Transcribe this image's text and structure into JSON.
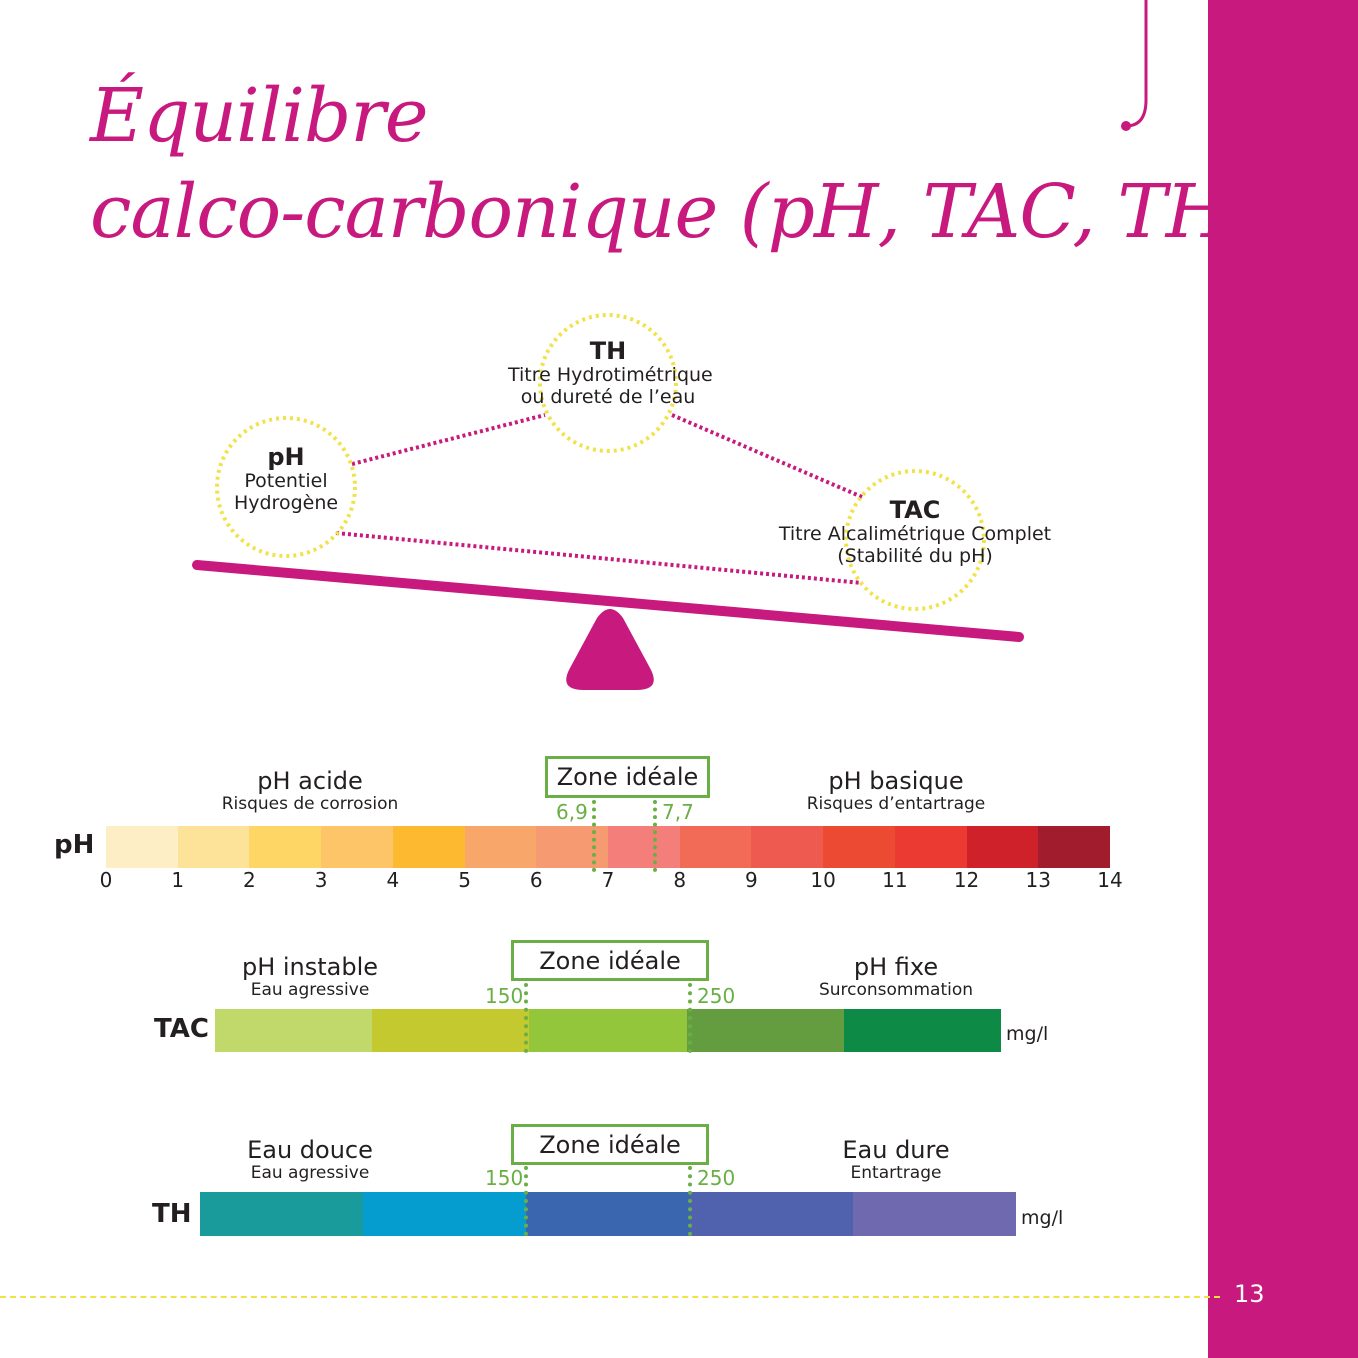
{
  "page": {
    "number": "13"
  },
  "title": {
    "line1": "Équilibre",
    "line2": "calco-carbonique (pH, TAC, TH)"
  },
  "balance": {
    "nodes": {
      "th": {
        "title": "TH",
        "line1": "Titre Hydrotimétrique",
        "line2": "ou dureté de l’eau"
      },
      "ph": {
        "title": "pH",
        "line1": "Potentiel",
        "line2": "Hydrogène"
      },
      "tac": {
        "title": "TAC",
        "line1": "Titre Alcalimétrique Complet",
        "line2": "(Stabilité du pH)"
      }
    },
    "colors": {
      "beam": "#c8197e",
      "circle": "#f2e24a",
      "link": "#c8197e"
    }
  },
  "scales": {
    "ph": {
      "label": "pH",
      "zone": "Zone idéale",
      "left": {
        "main": "pH acide",
        "sub": "Risques de corrosion"
      },
      "right": {
        "main": "pH basique",
        "sub": "Risques d’entartrage"
      },
      "marker_low": "6,9",
      "marker_high": "7,7",
      "ticks": [
        "0",
        "1",
        "2",
        "3",
        "4",
        "5",
        "6",
        "7",
        "8",
        "9",
        "10",
        "11",
        "12",
        "13",
        "14"
      ],
      "colors": [
        "#fdeec6",
        "#fde39a",
        "#fdd666",
        "#fdc567",
        "#fdba31",
        "#f8a66a",
        "#f69a72",
        "#f47e79",
        "#f26b56",
        "#ee5a50",
        "#ed4a33",
        "#ea3a32",
        "#cf2129",
        "#a11d2e"
      ]
    },
    "tac": {
      "label": "TAC",
      "zone": "Zone idéale",
      "left": {
        "main": "pH instable",
        "sub": "Eau agressive"
      },
      "right": {
        "main": "pH fixe",
        "sub": "Surconsommation"
      },
      "marker_low": "150",
      "marker_high": "250",
      "unit": "mg/l",
      "colors": [
        "#c1d96a",
        "#c4c930",
        "#94c63c",
        "#649d40",
        "#0e8a47"
      ]
    },
    "th": {
      "label": "TH",
      "zone": "Zone idéale",
      "left": {
        "main": "Eau douce",
        "sub": "Eau agressive"
      },
      "right": {
        "main": "Eau dure",
        "sub": "Entartrage"
      },
      "marker_low": "150",
      "marker_high": "250",
      "unit": "mg/l",
      "colors": [
        "#189b9a",
        "#059ccf",
        "#3a66b0",
        "#5062ad",
        "#6f6ab0"
      ]
    }
  }
}
